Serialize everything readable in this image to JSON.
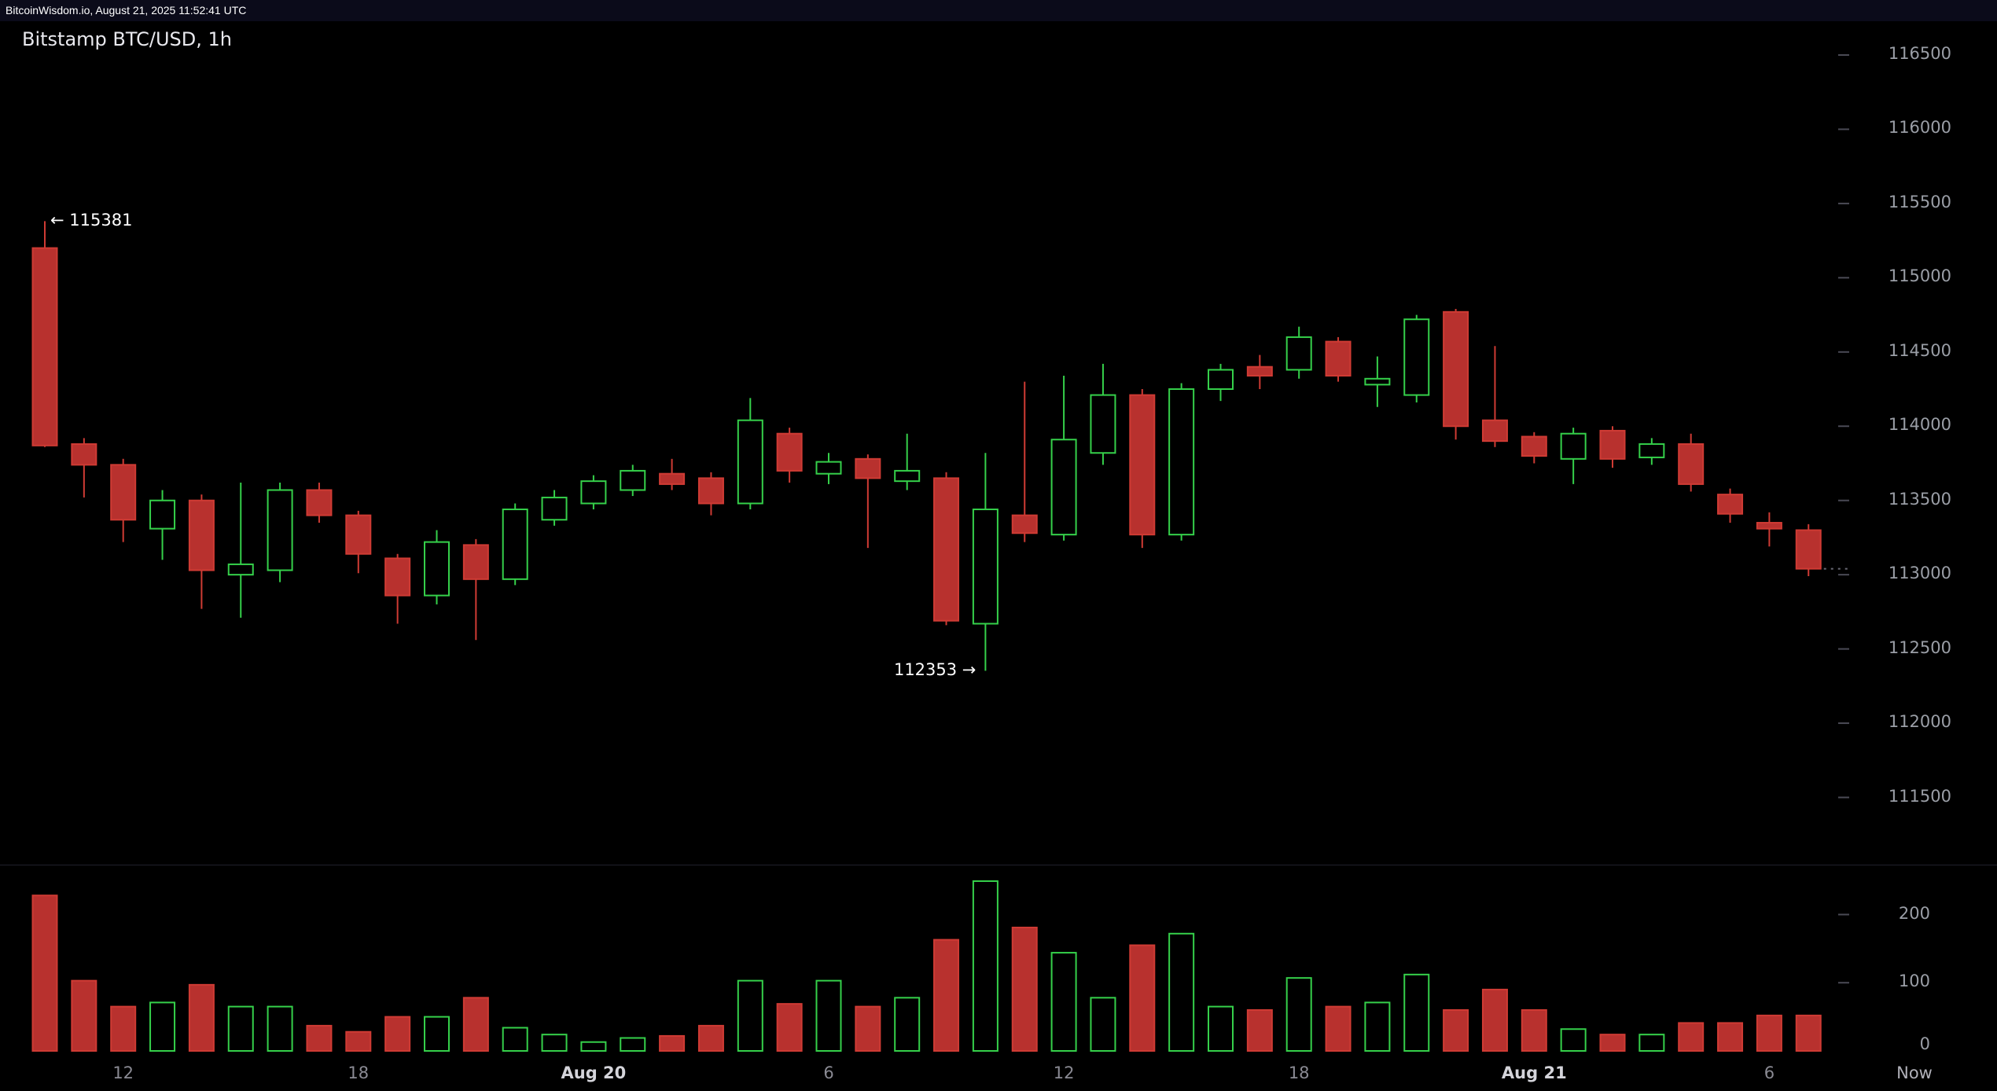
{
  "topbar": {
    "text": "BitcoinWisdom.io, August 21, 2025 11:52:41 UTC"
  },
  "chart": {
    "title": "Bitstamp BTC/USD, 1h",
    "now_label": "Now",
    "annotations": {
      "high": "← 115381",
      "low": "112353 →"
    },
    "colors": {
      "up": "#35d04a",
      "down": "#b8312e",
      "down_stroke": "#cf3b34",
      "axis_text": "#9a9ea6",
      "tick": "#4a4a55",
      "last_price_line": "#6a6a75"
    }
  },
  "chart_data": {
    "type": "candlestick",
    "title": "Bitstamp BTC/USD, 1h",
    "exchange": "Bitstamp",
    "pair": "BTC/USD",
    "interval": "1h",
    "y_ticks": [
      116500,
      116000,
      115500,
      115000,
      114500,
      114000,
      113500,
      113000,
      112500,
      112000,
      111500
    ],
    "volume_ticks": [
      200,
      100,
      0
    ],
    "time_labels": [
      {
        "i": 2,
        "t": "12"
      },
      {
        "i": 8,
        "t": "18"
      },
      {
        "i": 14,
        "t": "Aug 20",
        "bold": true
      },
      {
        "i": 20,
        "t": "6"
      },
      {
        "i": 26,
        "t": "12"
      },
      {
        "i": 32,
        "t": "18"
      },
      {
        "i": 38,
        "t": "Aug 21",
        "bold": true
      },
      {
        "i": 44,
        "t": "6"
      }
    ],
    "high_annotation": {
      "text": "← 115381",
      "price": 115381,
      "candle": 0
    },
    "low_annotation": {
      "text": "112353 →",
      "price": 112353,
      "candle": 24
    },
    "last_price": 113040,
    "candles": [
      [
        115200,
        115381,
        113860,
        113870,
        228
      ],
      [
        113880,
        113920,
        113520,
        113740,
        103
      ],
      [
        113740,
        113780,
        113220,
        113370,
        65
      ],
      [
        113310,
        113570,
        113100,
        113500,
        71
      ],
      [
        113500,
        113540,
        112770,
        113030,
        97
      ],
      [
        113000,
        113620,
        112710,
        113070,
        65
      ],
      [
        113030,
        113620,
        112950,
        113570,
        65
      ],
      [
        113570,
        113620,
        113350,
        113400,
        37
      ],
      [
        113400,
        113430,
        113010,
        113140,
        28
      ],
      [
        113110,
        113140,
        112670,
        112860,
        50
      ],
      [
        112860,
        113300,
        112800,
        113220,
        50
      ],
      [
        113200,
        113240,
        112560,
        112970,
        78
      ],
      [
        112970,
        113480,
        112930,
        113440,
        34
      ],
      [
        113370,
        113570,
        113330,
        113520,
        24
      ],
      [
        113480,
        113670,
        113440,
        113630,
        13
      ],
      [
        113570,
        113740,
        113530,
        113700,
        19
      ],
      [
        113680,
        113780,
        113570,
        113610,
        22
      ],
      [
        113650,
        113690,
        113400,
        113480,
        37
      ],
      [
        113480,
        114190,
        113440,
        114040,
        103
      ],
      [
        113950,
        113990,
        113620,
        113700,
        69
      ],
      [
        113680,
        113820,
        113610,
        113760,
        103
      ],
      [
        113780,
        113810,
        113180,
        113650,
        65
      ],
      [
        113630,
        113950,
        113570,
        113700,
        78
      ],
      [
        113650,
        113690,
        112660,
        112690,
        163
      ],
      [
        112670,
        113820,
        112353,
        113440,
        249
      ],
      [
        113400,
        114300,
        113220,
        113280,
        181
      ],
      [
        113270,
        114340,
        113230,
        113910,
        144
      ],
      [
        113820,
        114420,
        113740,
        114210,
        78
      ],
      [
        114210,
        114250,
        113180,
        113270,
        155
      ],
      [
        113270,
        114290,
        113230,
        114250,
        172
      ],
      [
        114250,
        114420,
        114170,
        114380,
        65
      ],
      [
        114400,
        114480,
        114250,
        114340,
        60
      ],
      [
        114380,
        114670,
        114320,
        114600,
        107
      ],
      [
        114570,
        114600,
        114300,
        114340,
        65
      ],
      [
        114280,
        114470,
        114130,
        114320,
        71
      ],
      [
        114210,
        114750,
        114160,
        114720,
        112
      ],
      [
        114770,
        114790,
        113910,
        114000,
        60
      ],
      [
        114040,
        114540,
        113860,
        113900,
        90
      ],
      [
        113930,
        113960,
        113750,
        113800,
        60
      ],
      [
        113780,
        113990,
        113610,
        113950,
        32
      ],
      [
        113970,
        114000,
        113720,
        113780,
        24
      ],
      [
        113790,
        113920,
        113740,
        113880,
        24
      ],
      [
        113880,
        113950,
        113560,
        113610,
        41
      ],
      [
        113540,
        113580,
        113350,
        113410,
        41
      ],
      [
        113350,
        113420,
        113190,
        113310,
        52
      ],
      [
        113300,
        113340,
        112990,
        113040,
        52
      ]
    ]
  }
}
